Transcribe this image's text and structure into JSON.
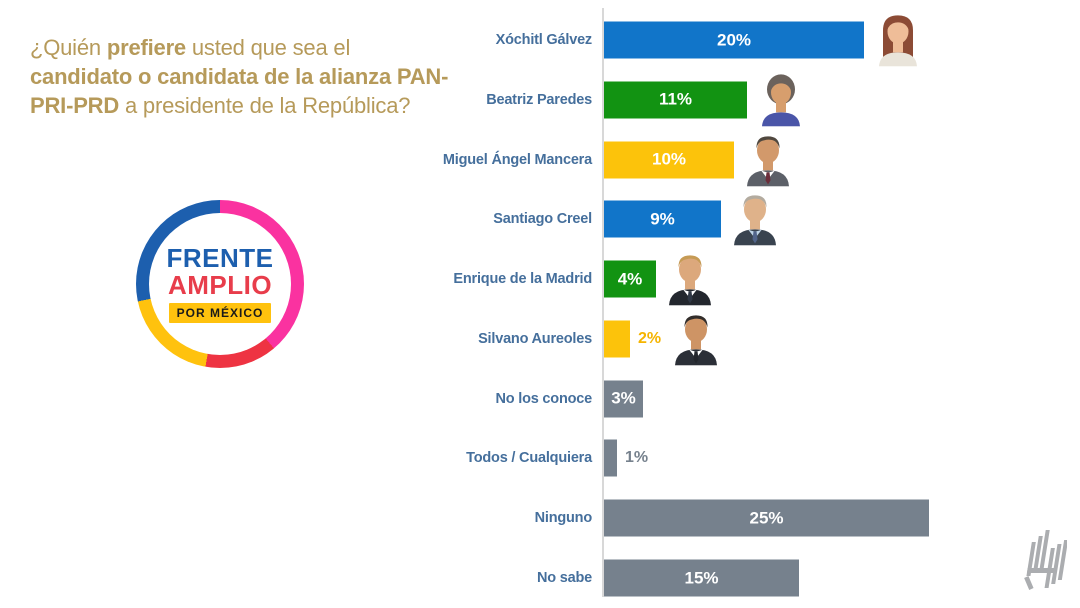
{
  "question": {
    "color": "#B69A5A",
    "full_text": "¿Quién prefiere usted que sea el candidato o candidata de la alianza PAN-PRI-PRD a presidente de la República?",
    "lines": [
      [
        {
          "text": "¿Quién ",
          "bold": false
        },
        {
          "text": "prefiere",
          "bold": true
        },
        {
          "text": " usted que sea el",
          "bold": false
        }
      ],
      [
        {
          "text": "candidato o candidata de la alianza PAN-",
          "bold": true
        }
      ],
      [
        {
          "text": "PRI-PRD",
          "bold": true
        },
        {
          "text": " a presidente de la República?",
          "bold": false
        }
      ]
    ]
  },
  "logo": {
    "line1": "FRENTE",
    "line2": "AMPLIO",
    "banner": "POR MÉXICO",
    "colors": {
      "ring_blue": "#1D5FAE",
      "ring_pink": "#FA32A0",
      "ring_red": "#EE3342",
      "ring_yellow": "#FFC20E",
      "frente_text": "#1D5FAE",
      "amplio_text": "#E83D4B",
      "banner_bg": "#FFC20E",
      "banner_text": "#1A1A1A"
    }
  },
  "chart_data": {
    "type": "bar",
    "orientation": "horizontal",
    "title": "¿Quién prefiere usted que sea el candidato o candidata de la alianza PAN-PRI-PRD a presidente de la República?",
    "value_unit": "%",
    "axis": {
      "min": 0,
      "max": 25
    },
    "label_color": "#456F9C",
    "axis_line_color": "#D8D8D8",
    "palette": {
      "blue": "#1175C9",
      "green": "#129312",
      "yellow": "#FCC30B",
      "gray": "#76818D"
    },
    "categories": [
      "Xóchitl Gálvez",
      "Beatriz Paredes",
      "Miguel Ángel Mancera",
      "Santiago Creel",
      "Enrique de la Madrid",
      "Silvano Aureoles",
      "No los conoce",
      "Todos / Cualquiera",
      "Ninguno",
      "No sabe"
    ],
    "values": [
      20,
      11,
      10,
      9,
      4,
      2,
      3,
      1,
      25,
      15
    ],
    "rows": [
      {
        "label": "Xóchitl Gálvez",
        "value": 20,
        "value_label": "20%",
        "bar_color": "#1175C9",
        "value_position": "inside",
        "photo": {
          "style": "woman-long",
          "hair": "#8C4B35",
          "skin": "#EFBD98",
          "top": "#E9E4DA"
        }
      },
      {
        "label": "Beatriz Paredes",
        "value": 11,
        "value_label": "11%",
        "bar_color": "#129312",
        "value_position": "inside",
        "photo": {
          "style": "woman-bob",
          "hair": "#6B625C",
          "skin": "#D79E6D",
          "top": "#4A55A8"
        }
      },
      {
        "label": "Miguel Ángel Mancera",
        "value": 10,
        "value_label": "10%",
        "bar_color": "#FCC30B",
        "value_position": "inside",
        "photo": {
          "style": "man",
          "hair": "#50483F",
          "skin": "#D2996B",
          "top": "#5C6068",
          "shirt": "#FFFFFF",
          "tie": "#6B2D3A"
        }
      },
      {
        "label": "Santiago Creel",
        "value": 9,
        "value_label": "9%",
        "bar_color": "#1175C9",
        "value_position": "inside",
        "photo": {
          "style": "man",
          "hair": "#B3AB9F",
          "skin": "#DFB28A",
          "top": "#39434F",
          "shirt": "#BFD4E6",
          "tie": "#51648A"
        }
      },
      {
        "label": "Enrique de la Madrid",
        "value": 4,
        "value_label": "4%",
        "bar_color": "#129312",
        "value_position": "inside",
        "photo": {
          "style": "man",
          "hair": "#C69B55",
          "skin": "#DCA87C",
          "top": "#23272E",
          "shirt": "#FFFFFF",
          "tie": "#303845"
        }
      },
      {
        "label": "Silvano Aureoles",
        "value": 2,
        "value_label": "2%",
        "bar_color": "#FCC30B",
        "value_position": "outside",
        "value_color": "#F5B400",
        "photo": {
          "style": "man",
          "hair": "#332E2B",
          "skin": "#CE9465",
          "top": "#2B2F37",
          "shirt": "#FFFFFF",
          "tie": "#23262C"
        }
      },
      {
        "label": "No los conoce",
        "value": 3,
        "value_label": "3%",
        "bar_color": "#76818D",
        "value_position": "inside"
      },
      {
        "label": "Todos / Cualquiera",
        "value": 1,
        "value_label": "1%",
        "bar_color": "#76818D",
        "value_position": "outside",
        "value_color": "#76818D"
      },
      {
        "label": "Ninguno",
        "value": 25,
        "value_label": "25%",
        "bar_color": "#76818D",
        "value_position": "inside"
      },
      {
        "label": "No sabe",
        "value": 15,
        "value_label": "15%",
        "bar_color": "#76818D",
        "value_position": "inside"
      }
    ]
  },
  "watermark": {
    "icon": "h-bars-logo",
    "color": "#ABADB0"
  }
}
